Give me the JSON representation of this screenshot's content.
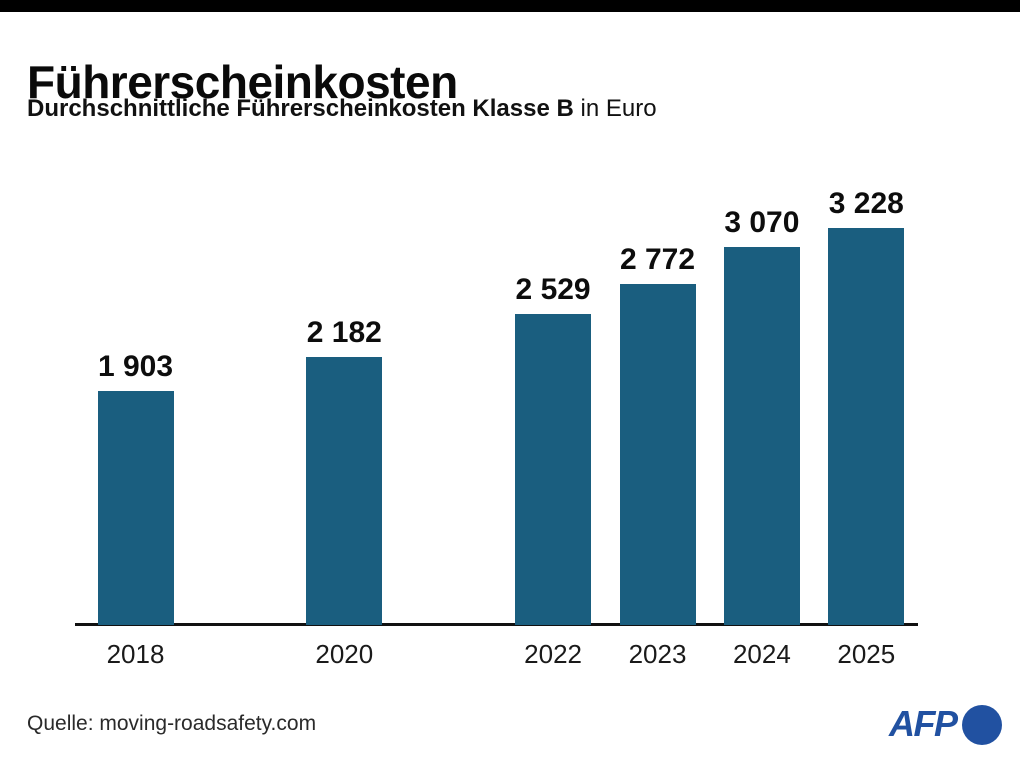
{
  "header": {
    "title": "Führerscheinkosten",
    "subtitle_bold": "Durchschnittliche Führerscheinkosten Klasse B",
    "subtitle_regular": " in Euro"
  },
  "chart_data": {
    "type": "bar",
    "title": "Führerscheinkosten",
    "subtitle": "Durchschnittliche Führerscheinkosten Klasse B in Euro",
    "unit": "Euro",
    "categories": [
      "2018",
      "2020",
      "2022",
      "2023",
      "2024",
      "2025"
    ],
    "values": [
      1903,
      2182,
      2529,
      2772,
      3070,
      3228
    ],
    "value_labels": [
      "1 903",
      "2 182",
      "2 529",
      "2 772",
      "3 070",
      "3 228"
    ],
    "bar_color": "#1a5e7f",
    "ylim": [
      0,
      3300
    ],
    "grid": false,
    "legend": false,
    "x_scale": "linear-years (2019 and 2021 omitted, gaps kept)"
  },
  "footer": {
    "source": "Quelle: moving-roadsafety.com",
    "afp_label": "AFP",
    "afp_color": "#2151a1"
  },
  "colors": {
    "background": "#ffffff",
    "topbar": "#000000",
    "bar": "#1a5e7f",
    "text": "#0d0d0d",
    "axis": "#111111",
    "afp_blue": "#2151a1"
  }
}
